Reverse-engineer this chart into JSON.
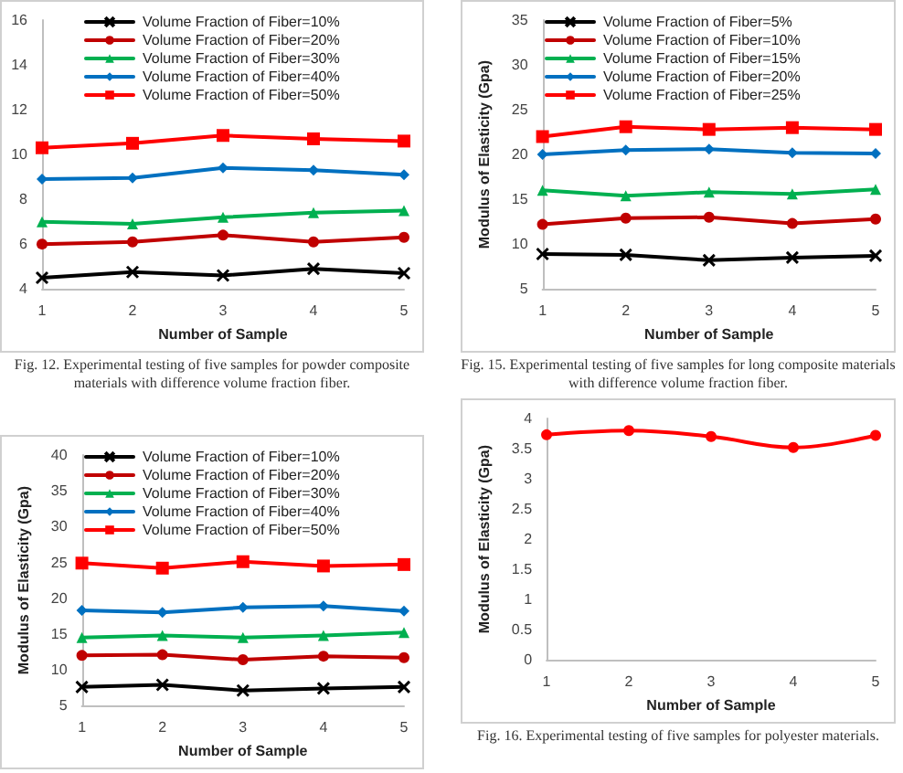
{
  "chart_data": [
    {
      "type": "line",
      "x": [
        1,
        2,
        3,
        4,
        5
      ],
      "xlim": [
        1,
        5
      ],
      "xticks": [
        1,
        2,
        3,
        4,
        5
      ],
      "ylim": [
        4,
        16
      ],
      "yticks": [
        4,
        6,
        8,
        10,
        12,
        14,
        16
      ],
      "xlabel": "Number of Sample",
      "legend": "top left",
      "annotations": [
        "Fig. 12. Experimental testing of five samples for powder composite materials with difference volume fraction fiber."
      ],
      "series": [
        {
          "name": "Volume Fraction of Fiber=10%",
          "color": "#000000",
          "marker": "cross",
          "values": [
            4.5,
            4.75,
            4.6,
            4.9,
            4.7
          ]
        },
        {
          "name": "Volume Fraction of Fiber=20%",
          "color": "#c00000",
          "marker": "circle",
          "values": [
            6.0,
            6.1,
            6.4,
            6.1,
            6.3
          ]
        },
        {
          "name": "Volume Fraction of Fiber=30%",
          "color": "#00b050",
          "marker": "triangle",
          "values": [
            7.0,
            6.9,
            7.2,
            7.4,
            7.5
          ]
        },
        {
          "name": "Volume Fraction of Fiber=40%",
          "color": "#0070c0",
          "marker": "diamond",
          "values": [
            8.9,
            8.95,
            9.4,
            9.3,
            9.1
          ]
        },
        {
          "name": "Volume Fraction of Fiber=50%",
          "color": "#ff0000",
          "marker": "square",
          "values": [
            10.3,
            10.5,
            10.85,
            10.7,
            10.6
          ]
        }
      ]
    },
    {
      "type": "line",
      "x": [
        1,
        2,
        3,
        4,
        5
      ],
      "xlim": [
        1,
        5
      ],
      "xticks": [
        1,
        2,
        3,
        4,
        5
      ],
      "ylim": [
        5,
        35
      ],
      "yticks": [
        5,
        10,
        15,
        20,
        25,
        30,
        35
      ],
      "xlabel": "Number of Sample",
      "ylabel": "Modulus of Elasticity (Gpa)",
      "legend": "top left",
      "annotations": [
        "Fig. 15. Experimental testing of five samples for long composite materials with difference volume fraction fiber."
      ],
      "series": [
        {
          "name": "Volume Fraction of Fiber=5%",
          "color": "#000000",
          "marker": "cross",
          "values": [
            8.9,
            8.8,
            8.2,
            8.5,
            8.7
          ]
        },
        {
          "name": "Volume Fraction of Fiber=10%",
          "color": "#c00000",
          "marker": "circle",
          "values": [
            12.2,
            12.9,
            13.0,
            12.3,
            12.8
          ]
        },
        {
          "name": "Volume Fraction of Fiber=15%",
          "color": "#00b050",
          "marker": "triangle",
          "values": [
            16.0,
            15.4,
            15.8,
            15.6,
            16.1
          ]
        },
        {
          "name": "Volume Fraction of Fiber=20%",
          "color": "#0070c0",
          "marker": "diamond",
          "values": [
            20.0,
            20.5,
            20.6,
            20.2,
            20.1
          ]
        },
        {
          "name": "Volume Fraction of Fiber=25%",
          "color": "#ff0000",
          "marker": "square",
          "values": [
            22.0,
            23.1,
            22.8,
            23.0,
            22.8
          ]
        }
      ]
    },
    {
      "type": "line",
      "x": [
        1,
        2,
        3,
        4,
        5
      ],
      "xlim": [
        1,
        5
      ],
      "xticks": [
        1,
        2,
        3,
        4,
        5
      ],
      "ylim": [
        5,
        40
      ],
      "yticks": [
        5,
        10,
        15,
        20,
        25,
        30,
        35,
        40
      ],
      "xlabel": "Number of Sample",
      "ylabel": "Modulus of Elasticity (Gpa)",
      "legend": "top left",
      "series": [
        {
          "name": "Volume Fraction of Fiber=10%",
          "color": "#000000",
          "marker": "cross",
          "values": [
            7.6,
            7.9,
            7.1,
            7.4,
            7.6
          ]
        },
        {
          "name": "Volume Fraction of Fiber=20%",
          "color": "#c00000",
          "marker": "circle",
          "values": [
            12.0,
            12.1,
            11.4,
            11.9,
            11.7
          ]
        },
        {
          "name": "Volume Fraction of Fiber=30%",
          "color": "#00b050",
          "marker": "triangle",
          "values": [
            14.5,
            14.8,
            14.5,
            14.8,
            15.2
          ]
        },
        {
          "name": "Volume Fraction of Fiber=40%",
          "color": "#0070c0",
          "marker": "diamond",
          "values": [
            18.3,
            18.0,
            18.7,
            18.9,
            18.2
          ]
        },
        {
          "name": "Volume Fraction of Fiber=50%",
          "color": "#ff0000",
          "marker": "square",
          "values": [
            24.9,
            24.2,
            25.1,
            24.5,
            24.7
          ]
        }
      ]
    },
    {
      "type": "line",
      "x": [
        1,
        2,
        3,
        4,
        5
      ],
      "xlim": [
        1,
        5
      ],
      "xticks": [
        1,
        2,
        3,
        4,
        5
      ],
      "ylim": [
        0,
        4
      ],
      "yticks": [
        0,
        0.5,
        1,
        1.5,
        2,
        2.5,
        3,
        3.5,
        4
      ],
      "xlabel": "Number of Sample",
      "ylabel": "Modulus of Elasticity (Gpa)",
      "annotations": [
        "Fig. 16. Experimental testing of five samples for polyester materials."
      ],
      "series": [
        {
          "color": "#ff0000",
          "marker": "circle",
          "values": [
            3.73,
            3.8,
            3.7,
            3.52,
            3.72
          ]
        }
      ]
    }
  ]
}
